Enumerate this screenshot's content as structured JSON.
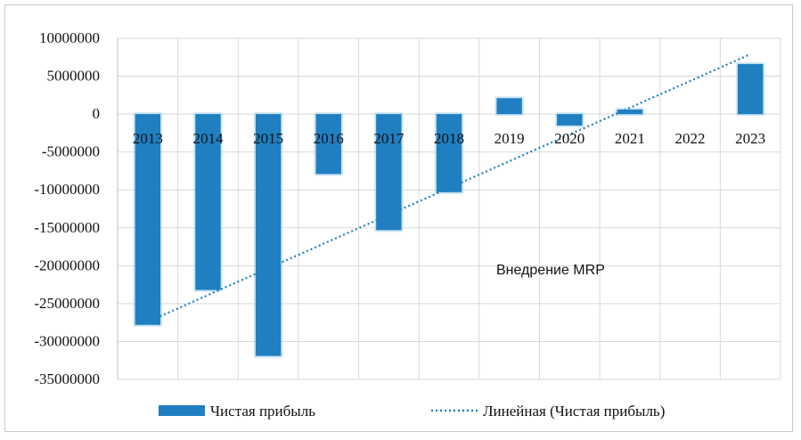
{
  "chart_data": {
    "type": "bar",
    "categories": [
      "2013",
      "2014",
      "2015",
      "2016",
      "2017",
      "2018",
      "2019",
      "2020",
      "2021",
      "2022",
      "2023"
    ],
    "series": [
      {
        "name": "Чистая прибыль",
        "values": [
          -27800000,
          -23200000,
          -31900000,
          -7900000,
          -15300000,
          -10300000,
          2100000,
          -1500000,
          600000,
          0,
          6600000
        ],
        "color": "#1f7fc1"
      }
    ],
    "trendline": {
      "name": "Линейная (Чистая прибыль)",
      "type": "linear",
      "start": -27400000,
      "end": 7900000,
      "color": "#1f7fc1"
    },
    "yticks": [
      10000000,
      5000000,
      0,
      -5000000,
      -10000000,
      -15000000,
      -20000000,
      -25000000,
      -30000000,
      -35000000
    ],
    "ytick_labels": [
      "10000000",
      "5000000",
      "0",
      "-5000000",
      "-10000000",
      "-15000000",
      "-20000000",
      "-25000000",
      "-30000000",
      "-35000000"
    ],
    "ylim": [
      -35000000,
      10000000
    ],
    "grid": true,
    "legend_position": "bottom",
    "annotation": "Внедрение MRP",
    "title": "",
    "xlabel": "",
    "ylabel": ""
  }
}
